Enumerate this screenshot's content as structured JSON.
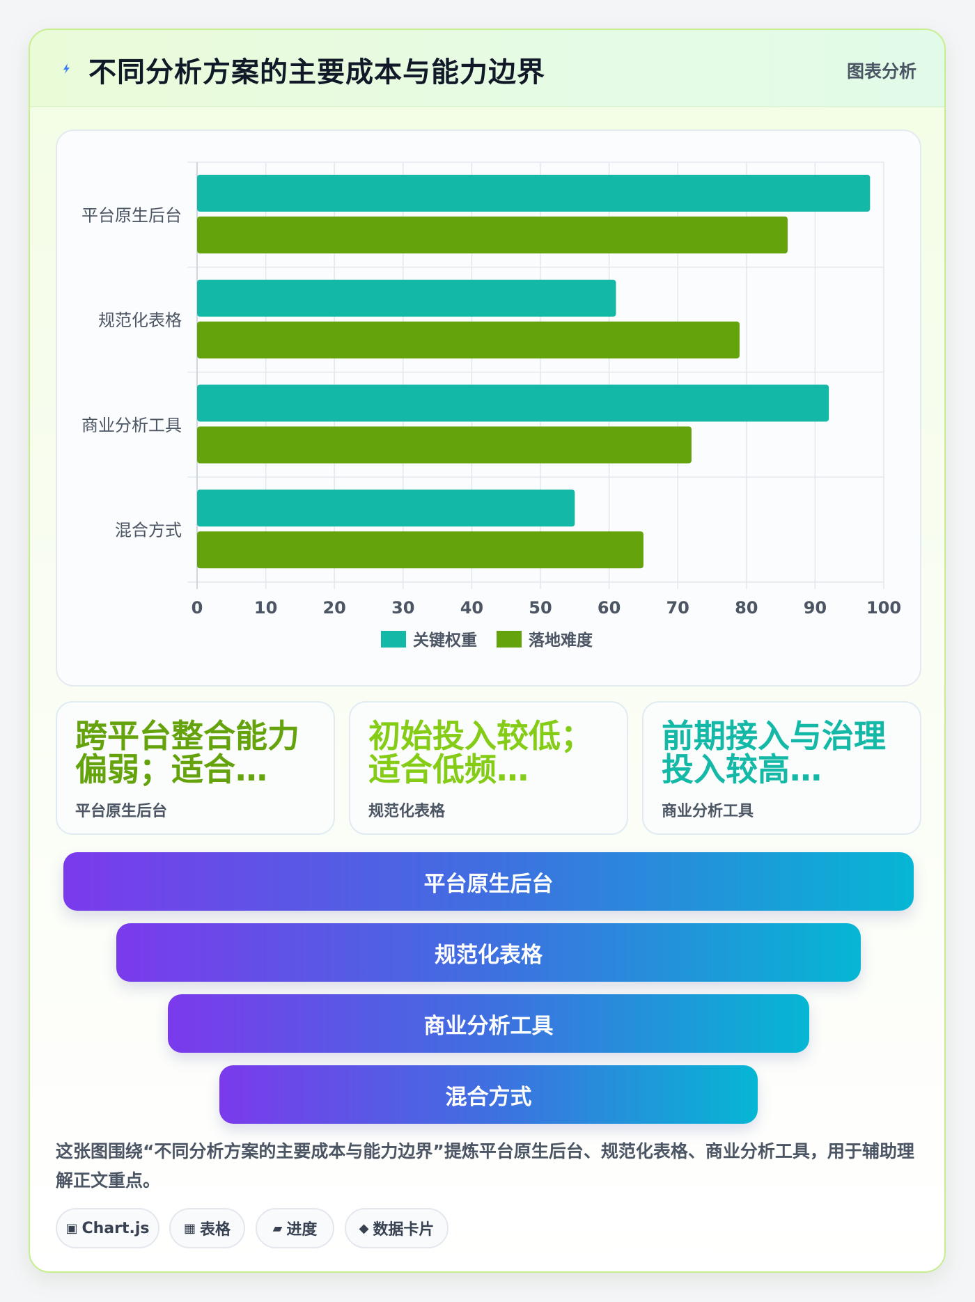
{
  "header": {
    "title": "不同分析方案的主要成本与能力边界",
    "tag": "图表分析",
    "icon": "lightning-icon"
  },
  "chart_data": {
    "type": "bar",
    "orientation": "horizontal",
    "categories": [
      "平台原生后台",
      "规范化表格",
      "商业分析工具",
      "混合方式"
    ],
    "series": [
      {
        "name": "关键权重",
        "values": [
          98,
          61,
          92,
          55
        ],
        "color": "#14b8a6"
      },
      {
        "name": "落地难度",
        "values": [
          86,
          79,
          72,
          65
        ],
        "color": "#65a30d"
      }
    ],
    "xlim": [
      0,
      100
    ],
    "xticks": [
      0,
      10,
      20,
      30,
      40,
      50,
      60,
      70,
      80,
      90,
      100
    ],
    "grid": true,
    "legend": "bottom"
  },
  "stats": [
    {
      "value": "跨平台整合能力偏弱；适合…",
      "label": "平台原生后台",
      "color": "#65a30d"
    },
    {
      "value": "初始投入较低；适合低频…",
      "label": "规范化表格",
      "color": "#84cc16"
    },
    {
      "value": "前期接入与治理投入较高…",
      "label": "商业分析工具",
      "color": "#14b8a6"
    }
  ],
  "funnel": [
    "平台原生后台",
    "规范化表格",
    "商业分析工具",
    "混合方式"
  ],
  "note": "这张图围绕“不同分析方案的主要成本与能力边界”提炼平台原生后台、规范化表格、商业分析工具，用于辅助理解正文重点。",
  "chips": [
    {
      "icon": "▣",
      "label": "Chart.js"
    },
    {
      "icon": "▦",
      "label": "表格"
    },
    {
      "icon": "▰",
      "label": "进度"
    },
    {
      "icon": "◆",
      "label": "数据卡片"
    }
  ]
}
